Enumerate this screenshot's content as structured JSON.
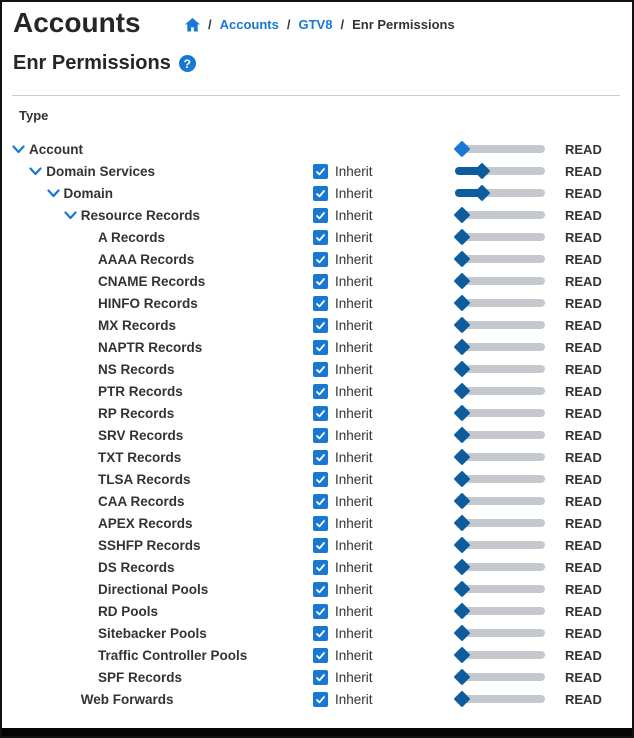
{
  "header": {
    "title": "Accounts",
    "separator": "/",
    "breadcrumb": [
      "Accounts",
      "GTV8",
      "Enr Permissions"
    ]
  },
  "section": {
    "title": "Enr Permissions",
    "help_glyph": "?"
  },
  "table": {
    "type_header": "Type",
    "inherit_label": "Inherit",
    "rows": [
      {
        "label": "Account",
        "level": 0,
        "expandable": true,
        "inherit": false,
        "handle_pos": 0,
        "handle_style": "light",
        "value": "READ"
      },
      {
        "label": "Domain Services",
        "level": 1,
        "expandable": true,
        "inherit": true,
        "handle_pos": 1,
        "handle_style": "dark",
        "value": "READ"
      },
      {
        "label": "Domain",
        "level": 2,
        "expandable": true,
        "inherit": true,
        "handle_pos": 1,
        "handle_style": "dark",
        "value": "READ"
      },
      {
        "label": "Resource Records",
        "level": 3,
        "expandable": true,
        "inherit": true,
        "handle_pos": 0,
        "handle_style": "dark",
        "value": "READ"
      },
      {
        "label": "A Records",
        "level": 4,
        "expandable": false,
        "inherit": true,
        "handle_pos": 0,
        "handle_style": "dark",
        "value": "READ"
      },
      {
        "label": "AAAA Records",
        "level": 4,
        "expandable": false,
        "inherit": true,
        "handle_pos": 0,
        "handle_style": "dark",
        "value": "READ"
      },
      {
        "label": "CNAME Records",
        "level": 4,
        "expandable": false,
        "inherit": true,
        "handle_pos": 0,
        "handle_style": "dark",
        "value": "READ"
      },
      {
        "label": "HINFO Records",
        "level": 4,
        "expandable": false,
        "inherit": true,
        "handle_pos": 0,
        "handle_style": "dark",
        "value": "READ"
      },
      {
        "label": "MX Records",
        "level": 4,
        "expandable": false,
        "inherit": true,
        "handle_pos": 0,
        "handle_style": "dark",
        "value": "READ"
      },
      {
        "label": "NAPTR Records",
        "level": 4,
        "expandable": false,
        "inherit": true,
        "handle_pos": 0,
        "handle_style": "dark",
        "value": "READ"
      },
      {
        "label": "NS Records",
        "level": 4,
        "expandable": false,
        "inherit": true,
        "handle_pos": 0,
        "handle_style": "dark",
        "value": "READ"
      },
      {
        "label": "PTR Records",
        "level": 4,
        "expandable": false,
        "inherit": true,
        "handle_pos": 0,
        "handle_style": "dark",
        "value": "READ"
      },
      {
        "label": "RP Records",
        "level": 4,
        "expandable": false,
        "inherit": true,
        "handle_pos": 0,
        "handle_style": "dark",
        "value": "READ"
      },
      {
        "label": "SRV Records",
        "level": 4,
        "expandable": false,
        "inherit": true,
        "handle_pos": 0,
        "handle_style": "dark",
        "value": "READ"
      },
      {
        "label": "TXT Records",
        "level": 4,
        "expandable": false,
        "inherit": true,
        "handle_pos": 0,
        "handle_style": "dark",
        "value": "READ"
      },
      {
        "label": "TLSA Records",
        "level": 4,
        "expandable": false,
        "inherit": true,
        "handle_pos": 0,
        "handle_style": "dark",
        "value": "READ"
      },
      {
        "label": "CAA Records",
        "level": 4,
        "expandable": false,
        "inherit": true,
        "handle_pos": 0,
        "handle_style": "dark",
        "value": "READ"
      },
      {
        "label": "APEX Records",
        "level": 4,
        "expandable": false,
        "inherit": true,
        "handle_pos": 0,
        "handle_style": "dark",
        "value": "READ"
      },
      {
        "label": "SSHFP Records",
        "level": 4,
        "expandable": false,
        "inherit": true,
        "handle_pos": 0,
        "handle_style": "dark",
        "value": "READ"
      },
      {
        "label": "DS Records",
        "level": 4,
        "expandable": false,
        "inherit": true,
        "handle_pos": 0,
        "handle_style": "dark",
        "value": "READ"
      },
      {
        "label": "Directional Pools",
        "level": 4,
        "expandable": false,
        "inherit": true,
        "handle_pos": 0,
        "handle_style": "dark",
        "value": "READ"
      },
      {
        "label": "RD Pools",
        "level": 4,
        "expandable": false,
        "inherit": true,
        "handle_pos": 0,
        "handle_style": "dark",
        "value": "READ"
      },
      {
        "label": "Sitebacker Pools",
        "level": 4,
        "expandable": false,
        "inherit": true,
        "handle_pos": 0,
        "handle_style": "dark",
        "value": "READ"
      },
      {
        "label": "Traffic Controller Pools",
        "level": 4,
        "expandable": false,
        "inherit": true,
        "handle_pos": 0,
        "handle_style": "dark",
        "value": "READ"
      },
      {
        "label": "SPF Records",
        "level": 4,
        "expandable": false,
        "inherit": true,
        "handle_pos": 0,
        "handle_style": "dark",
        "value": "READ"
      },
      {
        "label": "Web Forwards",
        "level": 3,
        "expandable": false,
        "inherit": true,
        "handle_pos": 0,
        "handle_style": "dark",
        "value": "READ"
      }
    ]
  },
  "colors": {
    "brand_blue": "#1878d2",
    "handle_navy": "#0d5c9e",
    "track_gray": "#c5c9cd",
    "text_dark": "#333333"
  }
}
